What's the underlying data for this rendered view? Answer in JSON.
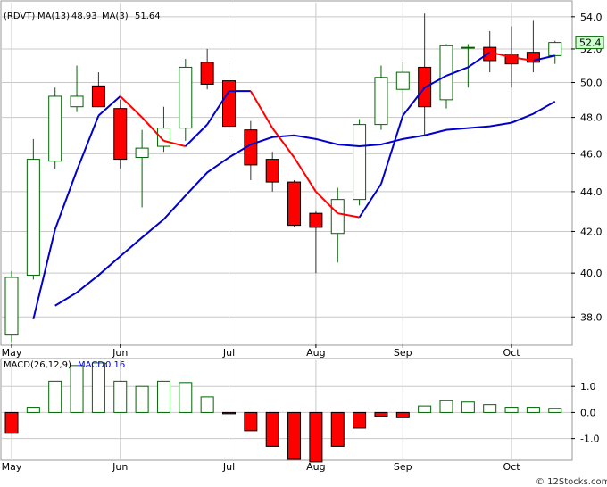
{
  "header": {
    "ticker": "(RDVT)",
    "ma13_label": "MA(13)",
    "ma13_value": "48.93",
    "ma3_label": "MA(3)",
    "ma3_value": "51.64"
  },
  "macd_header": {
    "label": "MACD(26,12,9)",
    "macd_label": "MACD:",
    "macd_value": "0.16"
  },
  "watermark": "© 12Stocks.com",
  "colors": {
    "up": "#006400",
    "down_fill": "#ff0000",
    "ma13": "#0000cc",
    "ma3_up": "#0000cc",
    "ma3_down": "#ff0000",
    "grid": "#c8c8c8",
    "current_price_box": "#ccffcc"
  },
  "chart_data": [
    {
      "type": "candlestick",
      "title": "",
      "interval": "weekly",
      "x_tick_labels": [
        "May",
        "Jun",
        "Jul",
        "Aug",
        "Sep",
        "Oct"
      ],
      "y_tick_labels": [
        "38.0",
        "40.0",
        "42.0",
        "44.0",
        "46.0",
        "48.0",
        "50.0",
        "52.0",
        "54.0"
      ],
      "ylim": [
        36.8,
        54.9
      ],
      "y_scale": "log",
      "grid": true,
      "current_price": "52.4",
      "candles": [
        {
          "open": 37.2,
          "high": 40.1,
          "low": 36.9,
          "close": 39.8,
          "month_tick": "May"
        },
        {
          "open": 39.9,
          "high": 46.8,
          "low": 39.7,
          "close": 45.7
        },
        {
          "open": 45.6,
          "high": 49.7,
          "low": 45.2,
          "close": 49.2
        },
        {
          "open": 48.6,
          "high": 51.0,
          "low": 48.3,
          "close": 49.2
        },
        {
          "open": 49.8,
          "high": 50.6,
          "low": 48.6,
          "close": 48.6
        },
        {
          "open": 48.5,
          "high": 49.0,
          "low": 45.2,
          "close": 45.7,
          "month_tick": "Jun"
        },
        {
          "open": 45.8,
          "high": 47.3,
          "low": 43.2,
          "close": 46.3
        },
        {
          "open": 46.4,
          "high": 48.6,
          "low": 46.1,
          "close": 47.4
        },
        {
          "open": 47.4,
          "high": 51.4,
          "low": 46.7,
          "close": 50.9
        },
        {
          "open": 51.2,
          "high": 52.0,
          "low": 49.6,
          "close": 49.9
        },
        {
          "open": 50.1,
          "high": 51.1,
          "low": 46.9,
          "close": 47.5,
          "month_tick": "Jul"
        },
        {
          "open": 47.3,
          "high": 47.8,
          "low": 44.6,
          "close": 45.4
        },
        {
          "open": 45.7,
          "high": 46.1,
          "low": 44.0,
          "close": 44.5
        },
        {
          "open": 44.5,
          "high": 44.6,
          "low": 42.2,
          "close": 42.3
        },
        {
          "open": 42.9,
          "high": 43.0,
          "low": 40.0,
          "close": 42.2,
          "month_tick": "Aug"
        },
        {
          "open": 41.9,
          "high": 44.2,
          "low": 40.5,
          "close": 43.6
        },
        {
          "open": 43.6,
          "high": 47.9,
          "low": 43.3,
          "close": 47.6
        },
        {
          "open": 47.6,
          "high": 51.0,
          "low": 47.3,
          "close": 50.3
        },
        {
          "open": 49.6,
          "high": 51.2,
          "low": 48.0,
          "close": 50.6,
          "month_tick": "Sep"
        },
        {
          "open": 50.9,
          "high": 54.2,
          "low": 47.0,
          "close": 48.6
        },
        {
          "open": 49.0,
          "high": 52.3,
          "low": 48.5,
          "close": 52.2
        },
        {
          "open": 52.1,
          "high": 52.3,
          "low": 49.7,
          "close": 52.1
        },
        {
          "open": 52.1,
          "high": 53.1,
          "low": 50.6,
          "close": 51.3
        },
        {
          "open": 51.7,
          "high": 53.4,
          "low": 49.7,
          "close": 51.1,
          "month_tick": "Oct"
        },
        {
          "open": 51.8,
          "high": 53.8,
          "low": 50.6,
          "close": 51.2
        },
        {
          "open": 51.6,
          "high": 52.5,
          "low": 51.1,
          "close": 52.4
        }
      ],
      "series": [
        {
          "name": "MA(13)",
          "values": [
            null,
            null,
            38.5,
            39.1,
            39.9,
            40.8,
            41.7,
            42.6,
            43.8,
            45.0,
            45.8,
            46.5,
            46.9,
            47.0,
            46.8,
            46.5,
            46.4,
            46.5,
            46.8,
            47.0,
            47.3,
            47.4,
            47.5,
            47.7,
            48.2,
            48.9
          ]
        },
        {
          "name": "MA(3)",
          "values": [
            null,
            37.9,
            42.1,
            45.1,
            48.1,
            49.2,
            48.0,
            46.7,
            46.4,
            47.6,
            49.5,
            49.5,
            47.4,
            45.8,
            44.0,
            42.9,
            42.7,
            44.4,
            48.1,
            49.7,
            50.4,
            50.9,
            51.8,
            51.5,
            51.3,
            51.6
          ]
        }
      ]
    },
    {
      "type": "bar",
      "title": "",
      "x_tick_labels": [
        "May",
        "Jun",
        "Jul",
        "Aug",
        "Sep",
        "Oct"
      ],
      "y_tick_labels": [
        "1.0",
        "0.0",
        "-1.0"
      ],
      "ylim": [
        -1.8,
        2.0
      ],
      "grid": true,
      "series": [
        {
          "name": "MACD",
          "values": [
            -0.8,
            0.2,
            1.2,
            1.8,
            1.9,
            1.2,
            1.0,
            1.2,
            1.15,
            0.6,
            -0.05,
            -0.7,
            -1.3,
            -1.8,
            -1.9,
            -1.3,
            -0.6,
            -0.15,
            -0.2,
            0.25,
            0.45,
            0.4,
            0.3,
            0.2,
            0.2,
            0.16
          ]
        }
      ]
    }
  ]
}
